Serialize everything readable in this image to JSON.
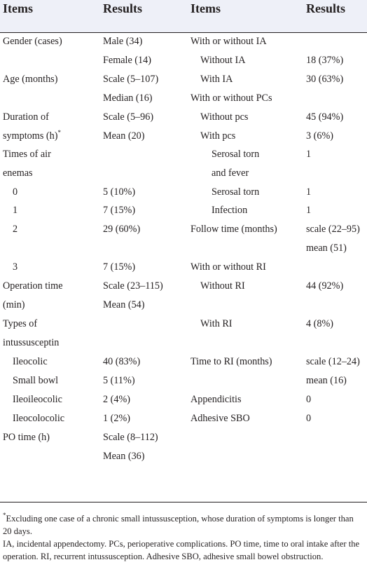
{
  "headers": {
    "left_items": "Items",
    "left_results": "Results",
    "right_items": "Items",
    "right_results": "Results"
  },
  "left_rows": [
    {
      "item": "Gender (cases)",
      "result": "Male (34)",
      "indent": 0
    },
    {
      "item": "",
      "result": "Female (14)",
      "indent": 0
    },
    {
      "item": "Age (months)",
      "result": "Scale (5–107)",
      "indent": 0
    },
    {
      "item": "",
      "result": "Median (16)",
      "indent": 0
    },
    {
      "item": "Duration of",
      "result": "Scale (5–96)",
      "indent": 0
    },
    {
      "item": "symptoms (h)*",
      "result": "Mean (20)",
      "indent": 0
    },
    {
      "item": "Times of air",
      "result": "",
      "indent": 0
    },
    {
      "item": "enemas",
      "result": "",
      "indent": 0
    },
    {
      "item": "0",
      "result": "5 (10%)",
      "indent": 1
    },
    {
      "item": "1",
      "result": "7 (15%)",
      "indent": 1
    },
    {
      "item": "2",
      "result": "29 (60%)",
      "indent": 1
    },
    {
      "item": "",
      "result": "",
      "indent": 0
    },
    {
      "item": "3",
      "result": "7 (15%)",
      "indent": 1
    },
    {
      "item": "Operation time",
      "result": "Scale (23–115)",
      "indent": 0
    },
    {
      "item": "(min)",
      "result": "Mean (54)",
      "indent": 0
    },
    {
      "item": "Types of",
      "result": "",
      "indent": 0
    },
    {
      "item": "intussusceptin",
      "result": "",
      "indent": 0
    },
    {
      "item": "Ileocolic",
      "result": "40 (83%)",
      "indent": 1
    },
    {
      "item": "Small bowl",
      "result": "5 (11%)",
      "indent": 1
    },
    {
      "item": "Ileoileocolic",
      "result": "2 (4%)",
      "indent": 1
    },
    {
      "item": "Ileocolocolic",
      "result": "1 (2%)",
      "indent": 1
    },
    {
      "item": "PO time (h)",
      "result": "Scale (8–112)",
      "indent": 0
    },
    {
      "item": "",
      "result": "Mean (36)",
      "indent": 0
    }
  ],
  "right_rows": [
    {
      "item": "With or without IA",
      "result": "",
      "indent": 0
    },
    {
      "item": "Without IA",
      "result": "18 (37%)",
      "indent": 1
    },
    {
      "item": "With IA",
      "result": "30 (63%)",
      "indent": 1
    },
    {
      "item": "With or without PCs",
      "result": "",
      "indent": 0
    },
    {
      "item": "Without pcs",
      "result": "45 (94%)",
      "indent": 1
    },
    {
      "item": "With pcs",
      "result": "3 (6%)",
      "indent": 1
    },
    {
      "item": "Serosal torn",
      "result": "1",
      "indent": 2
    },
    {
      "item": "and fever",
      "result": "",
      "indent": 2
    },
    {
      "item": "Serosal torn",
      "result": "1",
      "indent": 2
    },
    {
      "item": "Infection",
      "result": "1",
      "indent": 2
    },
    {
      "item": "Follow time (months)",
      "result": "scale (22–95)",
      "indent": 0
    },
    {
      "item": "",
      "result": "mean (51)",
      "indent": 0
    },
    {
      "item": "With or without RI",
      "result": "",
      "indent": 0
    },
    {
      "item": "Without RI",
      "result": "44 (92%)",
      "indent": 1
    },
    {
      "item": "",
      "result": "",
      "indent": 0
    },
    {
      "item": "With RI",
      "result": "4 (8%)",
      "indent": 1
    },
    {
      "item": "",
      "result": "",
      "indent": 0
    },
    {
      "item": "Time to RI (months)",
      "result": "scale (12–24)",
      "indent": 0
    },
    {
      "item": "",
      "result": "mean (16)",
      "indent": 0
    },
    {
      "item": "Appendicitis",
      "result": "0",
      "indent": 0
    },
    {
      "item": "Adhesive SBO",
      "result": "0",
      "indent": 0
    },
    {
      "item": "",
      "result": "",
      "indent": 0
    },
    {
      "item": "",
      "result": "",
      "indent": 0
    }
  ],
  "footnotes": {
    "marker": "*",
    "note1": "Excluding one case of a chronic small intussusception, whose duration of symptoms is longer than 20 days.",
    "note2": "IA, incidental appendectomy. PCs, perioperative complications. PO time, time to oral intake after the operation. RI, recurrent intussusception. Adhesive SBO, adhesive small bowel obstruction."
  }
}
